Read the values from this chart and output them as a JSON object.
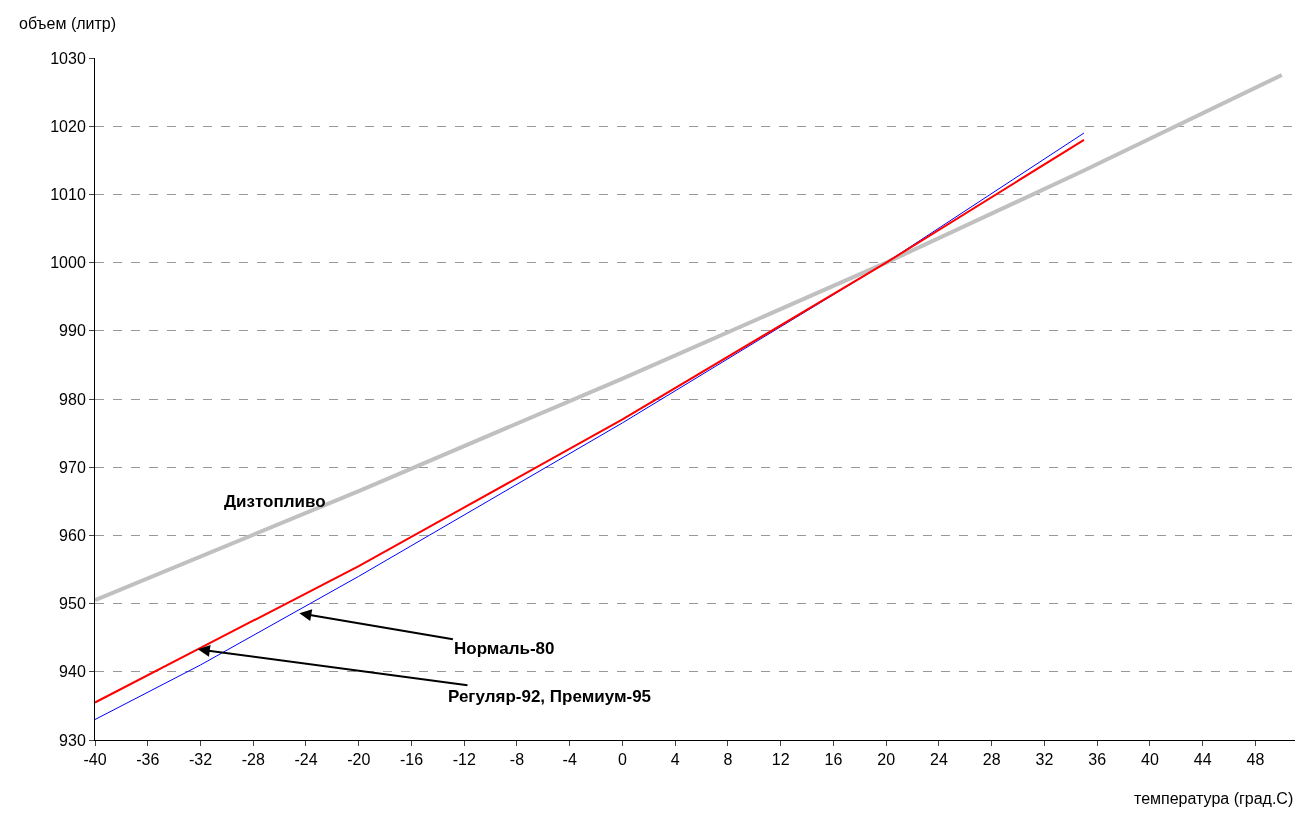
{
  "chart_data": {
    "type": "line",
    "ylabel": "объем (литр)",
    "xlabel": "температура (град.С)",
    "series": [
      {
        "color": "#c0c0c0",
        "x": [
          -40,
          -20,
          0,
          20,
          35,
          50
        ],
        "values": [
          950.5,
          966.5,
          983,
          1000,
          1013.5,
          1027.5
        ]
      },
      {
        "color": "#0000ff",
        "x": [
          -40,
          -32,
          -20,
          0,
          20,
          35
        ],
        "values": [
          933,
          941,
          954,
          976.5,
          1000,
          1019
        ]
      },
      {
        "color": "#ff0000",
        "x": [
          -40,
          -32,
          -20,
          0,
          20,
          35
        ],
        "values": [
          935.5,
          943.5,
          955.5,
          977,
          1000,
          1018
        ]
      }
    ],
    "annotations": [
      "Дизтопливо",
      {
        "text": "Нормаль-80",
        "x": -24.5,
        "y": 948.6
      },
      {
        "text": "Регуляр-92, Премиум-95",
        "x": -32.2,
        "y": 943.3
      }
    ],
    "xlim": [
      -40,
      51
    ],
    "xticks": [
      -40,
      -36,
      -32,
      -28,
      -24,
      -20,
      -16,
      -12,
      -8,
      -4,
      0,
      4,
      8,
      12,
      16,
      20,
      24,
      28,
      32,
      36,
      40,
      44,
      48
    ],
    "ylim": [
      930,
      1030
    ],
    "yticks": [
      930,
      940,
      950,
      960,
      970,
      980,
      990,
      1000,
      1010,
      1020,
      1030
    ],
    "grid": "y",
    "marker": "none",
    "line_style": "solid"
  }
}
